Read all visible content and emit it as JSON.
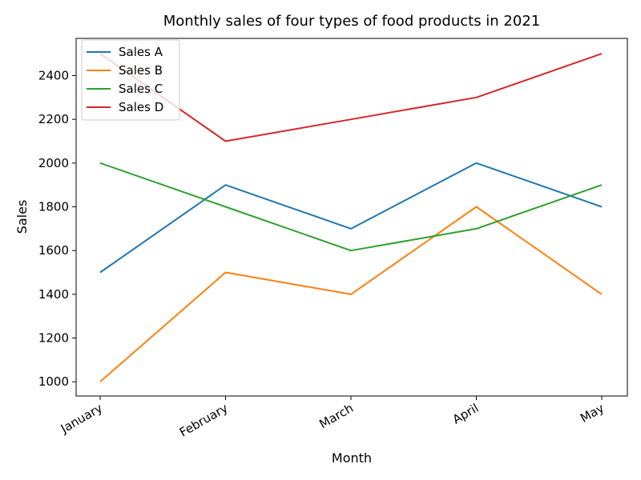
{
  "chart_data": {
    "type": "line",
    "title": "Monthly sales of four types of food products in 2021",
    "xlabel": "Month",
    "ylabel": "Sales",
    "categories": [
      "January",
      "February",
      "March",
      "April",
      "May"
    ],
    "ylim": [
      935,
      2570
    ],
    "yticks": [
      1000,
      1200,
      1400,
      1600,
      1800,
      2000,
      2200,
      2400
    ],
    "grid": false,
    "legend_position": "top-left",
    "series": [
      {
        "name": "Sales A",
        "color": "#1f77b4",
        "values": [
          1500,
          1900,
          1700,
          2000,
          1800
        ]
      },
      {
        "name": "Sales B",
        "color": "#ff7f0e",
        "values": [
          1000,
          1500,
          1400,
          1800,
          1400
        ]
      },
      {
        "name": "Sales C",
        "color": "#2ca02c",
        "values": [
          2000,
          1800,
          1600,
          1700,
          1900
        ]
      },
      {
        "name": "Sales D",
        "color": "#d62728",
        "values": [
          2500,
          2100,
          2200,
          2300,
          2500
        ]
      }
    ]
  }
}
